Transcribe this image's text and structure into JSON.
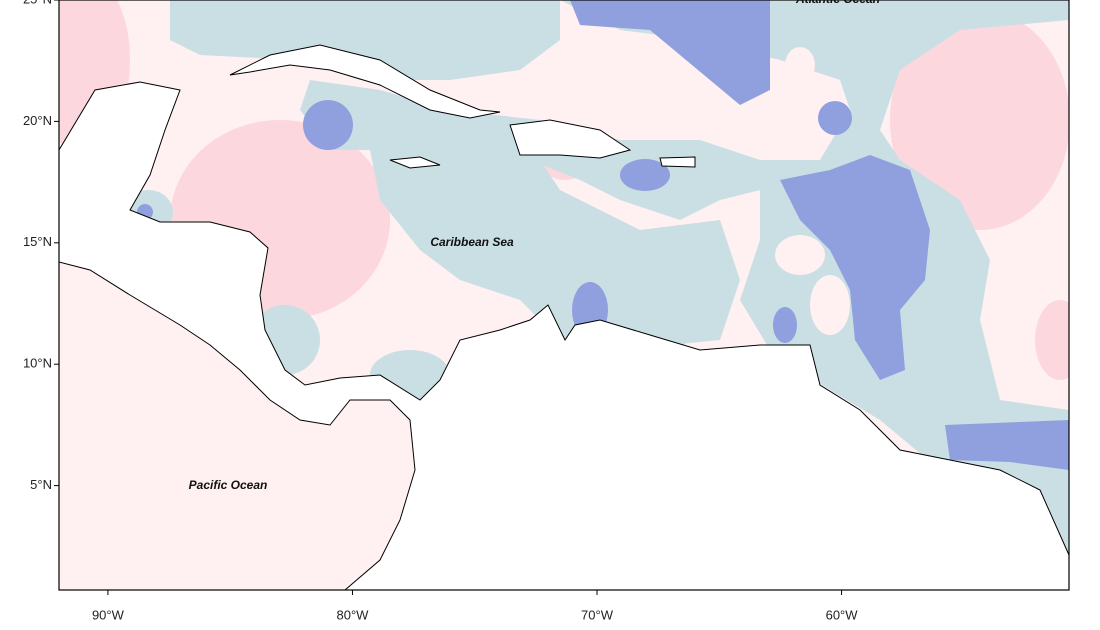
{
  "map": {
    "xlim": [
      -92,
      -50.7
    ],
    "ylim": [
      0.7,
      25
    ],
    "xticks": [
      {
        "value": -90,
        "label": "90°W"
      },
      {
        "value": -80,
        "label": "80°W"
      },
      {
        "value": -70,
        "label": "70°W"
      },
      {
        "value": -60,
        "label": "60°W"
      }
    ],
    "yticks": [
      {
        "value": 25,
        "label": "25°N"
      },
      {
        "value": 20,
        "label": "20°N"
      },
      {
        "value": 15,
        "label": "15°N"
      },
      {
        "value": 10,
        "label": "10°N"
      },
      {
        "value": 5,
        "label": "5°N"
      }
    ],
    "labels": [
      "Atlantic Ocean",
      "Caribbean Sea",
      "Pacific Ocean"
    ]
  }
}
